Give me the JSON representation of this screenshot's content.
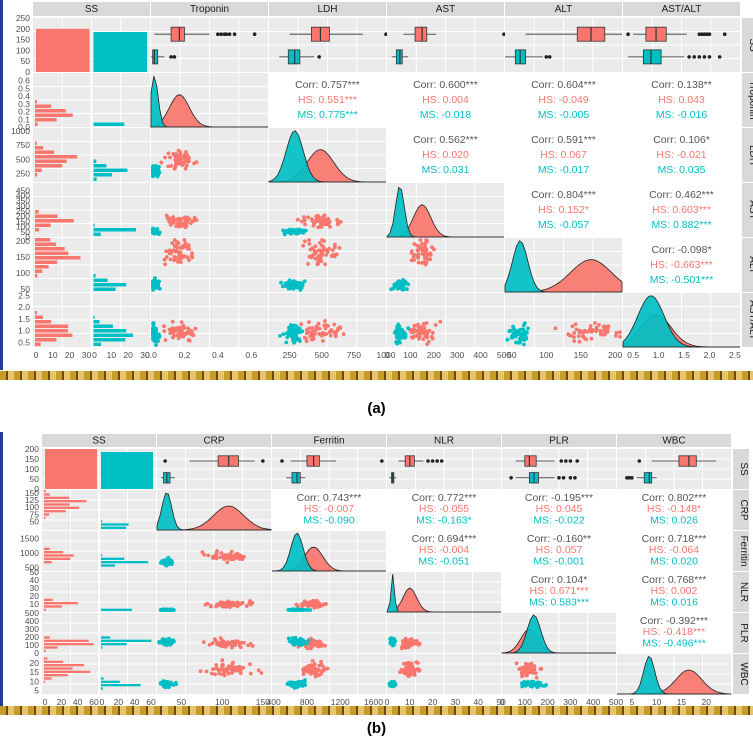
{
  "figures": [
    {
      "caption": "(a)",
      "chart_data": {
        "type": "pairs-matrix",
        "variables": [
          "SS",
          "Troponin",
          "LDH",
          "AST",
          "ALT",
          "AST/ALT"
        ],
        "groups": [
          {
            "name": "HS",
            "color": "#F8766D"
          },
          {
            "name": "MS",
            "color": "#00BFC4"
          }
        ],
        "ss_bar_axis": {
          "ticks": [
            0,
            50,
            100,
            150,
            200,
            250
          ]
        },
        "counts": {
          "HS": 200,
          "MS": 185
        },
        "columns_x_ticks": [
          {
            "var": "SS",
            "ticks": [
              "0",
              "10",
              "20",
              "30",
              "0",
              "10",
              "20",
              "30"
            ]
          },
          {
            "var": "Troponin",
            "range": [
              0,
              0.7
            ],
            "ticks": [
              "0.0",
              "0.2",
              "0.4",
              "0.6"
            ]
          },
          {
            "var": "LDH",
            "range": [
              90,
              1000
            ],
            "ticks": [
              "250",
              "500",
              "750",
              "1000"
            ]
          },
          {
            "var": "AST",
            "range": [
              0,
              500
            ],
            "ticks": [
              "0",
              "100",
              "200",
              "300",
              "400",
              "500"
            ]
          },
          {
            "var": "ALT",
            "range": [
              40,
              210
            ],
            "ticks": [
              "50",
              "100",
              "150",
              "200"
            ]
          },
          {
            "var": "AST/ALT",
            "range": [
              0.3,
              2.6
            ],
            "ticks": [
              "0.5",
              "1.0",
              "1.5",
              "2.0",
              "2.5"
            ]
          }
        ],
        "rows_y_ticks": [
          {
            "var": "SS",
            "ticks": [
              "0",
              "50",
              "100",
              "150",
              "200",
              "250"
            ]
          },
          {
            "var": "Troponin",
            "range": [
              0,
              0.7
            ],
            "ticks": [
              "0.0",
              "0.1",
              "0.2",
              "0.3",
              "0.4",
              "0.5",
              "0.6"
            ]
          },
          {
            "var": "LDH",
            "range": [
              100,
              1050
            ],
            "ticks": [
              "250",
              "500",
              "750",
              "1000"
            ]
          },
          {
            "var": "AST",
            "range": [
              0,
              520
            ],
            "ticks": [
              "0",
              "50",
              "100",
              "150",
              "200",
              "250",
              "300",
              "350",
              "400",
              "450"
            ]
          },
          {
            "var": "ALT",
            "range": [
              40,
              210
            ],
            "ticks": [
              "50",
              "100",
              "150",
              "200"
            ]
          },
          {
            "var": "AST/ALT",
            "range": [
              0.3,
              2.6
            ],
            "ticks": [
              "0.5",
              "1.0",
              "1.5",
              "2.0",
              "2.5"
            ]
          }
        ],
        "boxplots": {
          "HS": [
            {
              "var": "Troponin",
              "min": 0.02,
              "q1": 0.12,
              "median": 0.17,
              "q3": 0.2,
              "max": 0.35,
              "outliers": [
                0.4,
                0.42,
                0.44,
                0.45,
                0.47,
                0.5,
                0.62
              ]
            },
            {
              "var": "LDH",
              "min": 250,
              "q1": 420,
              "median": 490,
              "q3": 560,
              "max": 820,
              "outliers": [
                1000
              ]
            },
            {
              "var": "AST",
              "min": 70,
              "q1": 120,
              "median": 150,
              "q3": 170,
              "max": 210,
              "outliers": [
                500
              ]
            },
            {
              "var": "ALT",
              "min": 70,
              "q1": 145,
              "median": 165,
              "q3": 185,
              "max": 210,
              "outliers": []
            },
            {
              "var": "AST/ALT",
              "min": 0.5,
              "q1": 0.75,
              "median": 0.95,
              "q3": 1.15,
              "max": 1.55,
              "outliers": [
                0.4,
                1.8,
                1.85,
                1.9,
                1.95,
                2.0,
                2.3
              ]
            }
          ],
          "MS": [
            {
              "var": "Troponin",
              "min": 0.0,
              "q1": 0.01,
              "median": 0.02,
              "q3": 0.04,
              "max": 0.08,
              "outliers": [
                0.12,
                0.14
              ]
            },
            {
              "var": "LDH",
              "min": 170,
              "q1": 240,
              "median": 290,
              "q3": 330,
              "max": 440,
              "outliers": [
                480
              ]
            },
            {
              "var": "AST",
              "min": 20,
              "q1": 40,
              "median": 55,
              "q3": 65,
              "max": 90,
              "outliers": []
            },
            {
              "var": "ALT",
              "min": 40,
              "q1": 55,
              "median": 62,
              "q3": 70,
              "max": 95,
              "outliers": [
                100,
                105
              ]
            },
            {
              "var": "AST/ALT",
              "min": 0.4,
              "q1": 0.7,
              "median": 0.85,
              "q3": 1.05,
              "max": 1.5,
              "outliers": [
                1.6,
                1.7,
                1.8,
                1.9,
                2.0,
                2.2
              ]
            }
          ]
        },
        "correlations": [
          {
            "row": "Troponin",
            "col": "LDH",
            "corr": "Corr: 0.757***",
            "hs": "HS: 0.551***",
            "ms": "MS: 0.775***"
          },
          {
            "row": "Troponin",
            "col": "AST",
            "corr": "Corr: 0.600***",
            "hs": "HS: 0.004",
            "ms": "MS: -0.018"
          },
          {
            "row": "Troponin",
            "col": "ALT",
            "corr": "Corr: 0.604***",
            "hs": "HS: -0.049",
            "ms": "MS: -0.005"
          },
          {
            "row": "Troponin",
            "col": "AST/ALT",
            "corr": "Corr: 0.138**",
            "hs": "HS: 0.043",
            "ms": "MS: -0.016"
          },
          {
            "row": "LDH",
            "col": "AST",
            "corr": "Corr: 0.562***",
            "hs": "HS: 0.020",
            "ms": "MS: 0.031"
          },
          {
            "row": "LDH",
            "col": "ALT",
            "corr": "Corr: 0.591***",
            "hs": "HS: 0.067",
            "ms": "MS: -0.017"
          },
          {
            "row": "LDH",
            "col": "AST/ALT",
            "corr": "Corr: 0.106*",
            "hs": "HS: -0.021",
            "ms": "MS: 0.035"
          },
          {
            "row": "AST",
            "col": "ALT",
            "corr": "Corr: 0.804***",
            "hs": "HS: 0.152*",
            "ms": "MS: -0.057"
          },
          {
            "row": "AST",
            "col": "AST/ALT",
            "corr": "Corr: 0.462***",
            "hs": "HS: 0.603***",
            "ms": "MS: 0.882***"
          },
          {
            "row": "ALT",
            "col": "AST/ALT",
            "corr": "Corr: -0.098*",
            "hs": "HS: -0.663***",
            "ms": "MS: -0.501***"
          }
        ]
      }
    },
    {
      "caption": "(b)",
      "chart_data": {
        "type": "pairs-matrix",
        "variables": [
          "SS",
          "CRP",
          "Ferritin",
          "NLR",
          "PLR",
          "WBC"
        ],
        "groups": [
          {
            "name": "HS",
            "color": "#F8766D"
          },
          {
            "name": "MS",
            "color": "#00BFC4"
          }
        ],
        "ss_bar_axis": {
          "ticks": [
            0,
            50,
            100,
            150,
            200
          ]
        },
        "counts": {
          "HS": 200,
          "MS": 185
        },
        "columns_x_ticks": [
          {
            "var": "SS",
            "ticks": [
              "0",
              "20",
              "40",
              "60",
              "0",
              "20",
              "40",
              "60"
            ]
          },
          {
            "var": "CRP",
            "range": [
              20,
              160
            ],
            "ticks": [
              "50",
              "100",
              "150"
            ]
          },
          {
            "var": "Ferritin",
            "range": [
              380,
              1750
            ],
            "ticks": [
              "400",
              "800",
              "1200",
              "1600"
            ]
          },
          {
            "var": "NLR",
            "range": [
              0,
              50
            ],
            "ticks": [
              "0",
              "10",
              "20",
              "30",
              "40",
              "50"
            ]
          },
          {
            "var": "PLR",
            "range": [
              0,
              500
            ],
            "ticks": [
              "0",
              "100",
              "200",
              "300",
              "400",
              "500"
            ]
          },
          {
            "var": "WBC",
            "range": [
              2,
              25
            ],
            "ticks": [
              "5",
              "10",
              "15",
              "20"
            ]
          }
        ],
        "rows_y_ticks": [
          {
            "var": "SS",
            "ticks": [
              "0",
              "50",
              "100",
              "150",
              "200"
            ]
          },
          {
            "var": "CRP",
            "range": [
              20,
              160
            ],
            "ticks": [
              "50",
              "75",
              "100",
              "125",
              "150"
            ]
          },
          {
            "var": "Ferritin",
            "range": [
              380,
              1750
            ],
            "ticks": [
              "500",
              "1000",
              "1500"
            ]
          },
          {
            "var": "NLR",
            "range": [
              0,
              50
            ],
            "ticks": [
              "10",
              "20",
              "30",
              "40",
              "50"
            ]
          },
          {
            "var": "PLR",
            "range": [
              0,
              500
            ],
            "ticks": [
              "0",
              "100",
              "200",
              "300",
              "400",
              "500"
            ]
          },
          {
            "var": "WBC",
            "range": [
              3,
              25
            ],
            "ticks": [
              "5",
              "10",
              "15",
              "20"
            ]
          }
        ],
        "boxplots": {
          "HS": [
            {
              "var": "CRP",
              "min": 60,
              "q1": 95,
              "median": 108,
              "q3": 120,
              "max": 140,
              "outliers": [
                30,
                150
              ]
            },
            {
              "var": "Ferritin",
              "min": 600,
              "q1": 800,
              "median": 880,
              "q3": 950,
              "max": 1150,
              "outliers": [
                500,
                1700
              ]
            },
            {
              "var": "NLR",
              "min": 5,
              "q1": 8,
              "median": 10,
              "q3": 12,
              "max": 16,
              "outliers": [
                18,
                20,
                22,
                24
              ]
            },
            {
              "var": "PLR",
              "min": 60,
              "q1": 100,
              "median": 120,
              "q3": 150,
              "max": 230,
              "outliers": [
                260,
                280,
                300,
                330
              ]
            },
            {
              "var": "WBC",
              "min": 9,
              "q1": 14.5,
              "median": 16.5,
              "q3": 18,
              "max": 22,
              "outliers": [
                6.5
              ]
            }
          ],
          "MS": [
            {
              "var": "CRP",
              "min": 25,
              "q1": 28,
              "median": 32,
              "q3": 36,
              "max": 42,
              "outliers": []
            },
            {
              "var": "Ferritin",
              "min": 550,
              "q1": 620,
              "median": 680,
              "q3": 720,
              "max": 780,
              "outliers": []
            },
            {
              "var": "NLR",
              "min": 1,
              "q1": 2,
              "median": 2.5,
              "q3": 3,
              "max": 4,
              "outliers": []
            },
            {
              "var": "PLR",
              "min": 60,
              "q1": 120,
              "median": 140,
              "q3": 160,
              "max": 230,
              "outliers": [
                40,
                250,
                270,
                300,
                320
              ]
            },
            {
              "var": "WBC",
              "min": 6,
              "q1": 7.5,
              "median": 8.5,
              "q3": 9,
              "max": 10,
              "outliers": [
                4,
                4.5,
                5
              ]
            }
          ]
        },
        "correlations": [
          {
            "row": "CRP",
            "col": "Ferritin",
            "corr": "Corr: 0.743***",
            "hs": "HS: -0.007",
            "ms": "MS: -0.090"
          },
          {
            "row": "CRP",
            "col": "NLR",
            "corr": "Corr: 0.772***",
            "hs": "HS: -0.055",
            "ms": "MS: -0.163*"
          },
          {
            "row": "CRP",
            "col": "PLR",
            "corr": "Corr: -0.195***",
            "hs": "HS: 0.045",
            "ms": "MS: -0.022"
          },
          {
            "row": "CRP",
            "col": "WBC",
            "corr": "Corr: 0.802***",
            "hs": "HS: -0.148*",
            "ms": "MS: 0.026"
          },
          {
            "row": "Ferritin",
            "col": "NLR",
            "corr": "Corr: 0.694***",
            "hs": "HS: -0.004",
            "ms": "MS: -0.051"
          },
          {
            "row": "Ferritin",
            "col": "PLR",
            "corr": "Corr: -0.160**",
            "hs": "HS: 0.057",
            "ms": "MS: -0.001"
          },
          {
            "row": "Ferritin",
            "col": "WBC",
            "corr": "Corr: 0.718***",
            "hs": "HS: -0.064",
            "ms": "MS: 0.020"
          },
          {
            "row": "NLR",
            "col": "PLR",
            "corr": "Corr: 0.104*",
            "hs": "HS: 0.671***",
            "ms": "MS: 0.583***"
          },
          {
            "row": "NLR",
            "col": "WBC",
            "corr": "Corr: 0.768***",
            "hs": "HS: 0.002",
            "ms": "MS: 0.016"
          },
          {
            "row": "PLR",
            "col": "WBC",
            "corr": "Corr: -0.392***",
            "hs": "HS: -0.418***",
            "ms": "MS: -0.496***"
          }
        ]
      }
    }
  ]
}
